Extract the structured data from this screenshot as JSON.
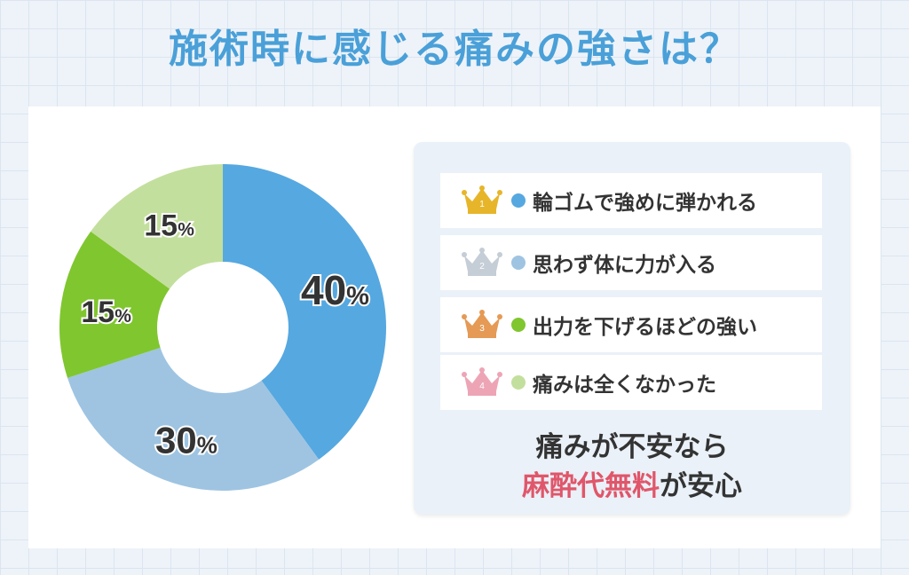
{
  "title": "施術時に感じる痛みの強さは？",
  "colors": {
    "title": "#4aa0d8",
    "accent": "#e0566a",
    "crowns": [
      "#e7b52a",
      "#c5cdd6",
      "#e59a55",
      "#eda5b6"
    ]
  },
  "chart_data": {
    "type": "pie",
    "variant": "donut",
    "categories": [
      "輪ゴムで強めに弾かれる",
      "思わず体に力が入る",
      "出力を下げるほどの強い",
      "痛みは全くなかった"
    ],
    "values": [
      40,
      30,
      15,
      15
    ],
    "value_labels": [
      "40%",
      "30%",
      "15%",
      "15%"
    ],
    "colors": [
      "#56a8e0",
      "#9ec4e2",
      "#80c62f",
      "#c3df9d"
    ],
    "legend_placement": "right"
  },
  "legend": [
    {
      "rank": "1",
      "label": "輪ゴムで強めに弾かれる",
      "crown": "gold-crown-icon"
    },
    {
      "rank": "2",
      "label": "思わず体に力が入る",
      "crown": "silver-crown-icon"
    },
    {
      "rank": "3",
      "label": "出力を下げるほどの強い",
      "crown": "bronze-crown-icon"
    },
    {
      "rank": "4",
      "label": "痛みは全くなかった",
      "crown": "pink-crown-icon"
    }
  ],
  "note": {
    "line1": "痛みが不安なら",
    "line2_accent": "麻酔代無料",
    "line2_rest": "が安心"
  }
}
